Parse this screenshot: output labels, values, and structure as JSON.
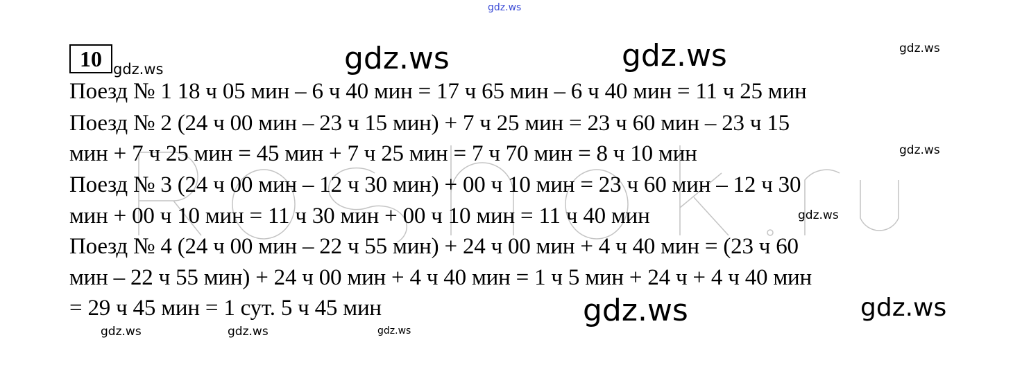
{
  "watermark": "gdz.ws",
  "ghost_watermark": "Reshak.ru",
  "task_number": "10",
  "lines": [
    "Поезд № 1   18 ч 05 мин – 6 ч 40 мин = 17 ч 65 мин – 6 ч 40 мин = 11 ч 25 мин",
    "Поезд № 2  (24 ч 00 мин – 23 ч 15 мин) + 7 ч 25 мин = 23 ч 60 мин – 23 ч 15",
    "мин + 7 ч 25 мин = 45 мин + 7 ч 25 мин = 7 ч 70 мин = 8 ч 10 мин",
    "Поезд № 3 (24 ч 00 мин – 12 ч 30 мин) + 00 ч 10 мин = 23 ч 60 мин – 12 ч 30",
    "мин + 00 ч 10 мин = 11 ч 30 мин + 00 ч 10 мин = 11 ч 40 мин",
    "Поезд № 4 (24 ч 00 мин – 22 ч 55 мин) + 24 ч 00 мин + 4 ч 40 мин = (23 ч 60",
    "мин – 22 ч 55 мин) + 24 ч 00 мин + 4 ч 40 мин = 1 ч 5 мин + 24 ч + 4 ч 40 мин",
    "= 29 ч 45 мин = 1 сут. 5 ч 45 мин"
  ]
}
